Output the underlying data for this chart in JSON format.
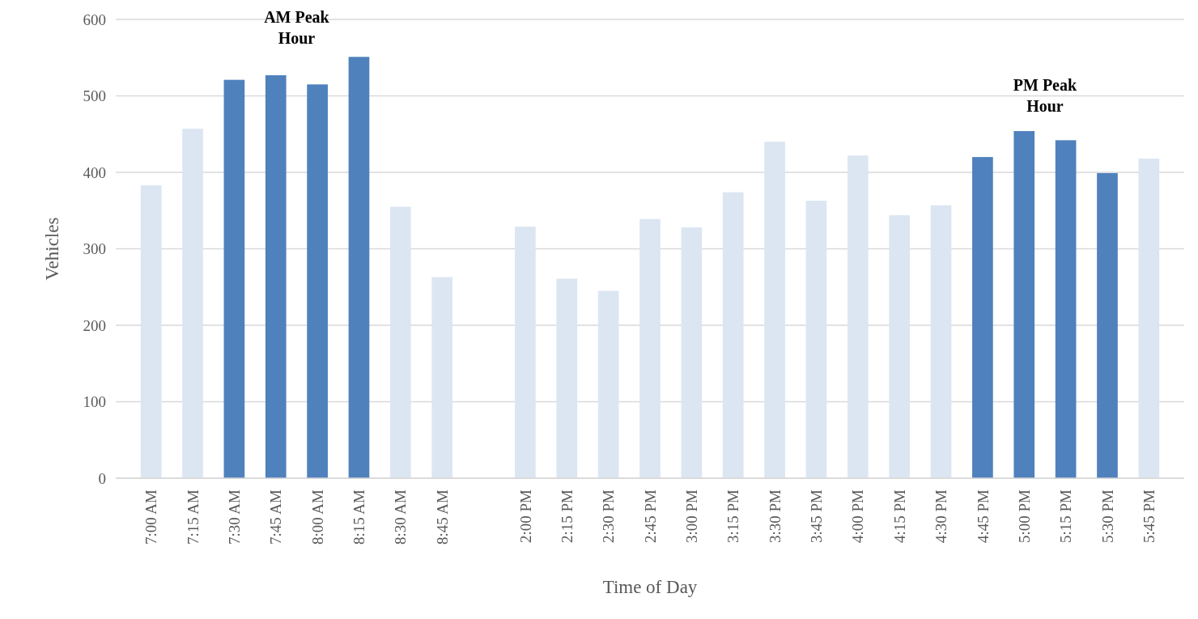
{
  "chart_data": {
    "type": "bar",
    "xlabel": "Time of Day",
    "ylabel": "Vehicles",
    "categories": [
      "7:00 AM",
      "7:15 AM",
      "7:30 AM",
      "7:45 AM",
      "8:00 AM",
      "8:15 AM",
      "8:30 AM",
      "8:45 AM",
      null,
      "2:00 PM",
      "2:15 PM",
      "2:30 PM",
      "2:45 PM",
      "3:00 PM",
      "3:15 PM",
      "3:30 PM",
      "3:45 PM",
      "4:00 PM",
      "4:15 PM",
      "4:30 PM",
      "4:45 PM",
      "5:00 PM",
      "5:15 PM",
      "5:30 PM",
      "5:45 PM"
    ],
    "values": [
      383,
      457,
      521,
      527,
      515,
      551,
      355,
      263,
      null,
      329,
      261,
      245,
      339,
      328,
      374,
      440,
      363,
      422,
      344,
      357,
      420,
      454,
      442,
      399,
      418
    ],
    "colors": [
      "#dce6f2",
      "#dce6f2",
      "#4f81bd",
      "#4f81bd",
      "#4f81bd",
      "#4f81bd",
      "#dce6f2",
      "#dce6f2",
      null,
      "#dce6f2",
      "#dce6f2",
      "#dce6f2",
      "#dce6f2",
      "#dce6f2",
      "#dce6f2",
      "#dce6f2",
      "#dce6f2",
      "#dce6f2",
      "#dce6f2",
      "#dce6f2",
      "#4f81bd",
      "#4f81bd",
      "#4f81bd",
      "#4f81bd",
      "#dce6f2"
    ],
    "ylim": [
      0,
      600
    ],
    "yticks": [
      0,
      100,
      200,
      300,
      400,
      500,
      600
    ],
    "grid": "y",
    "annotations": [
      "AM Peak Hour",
      "PM Peak Hour"
    ]
  }
}
